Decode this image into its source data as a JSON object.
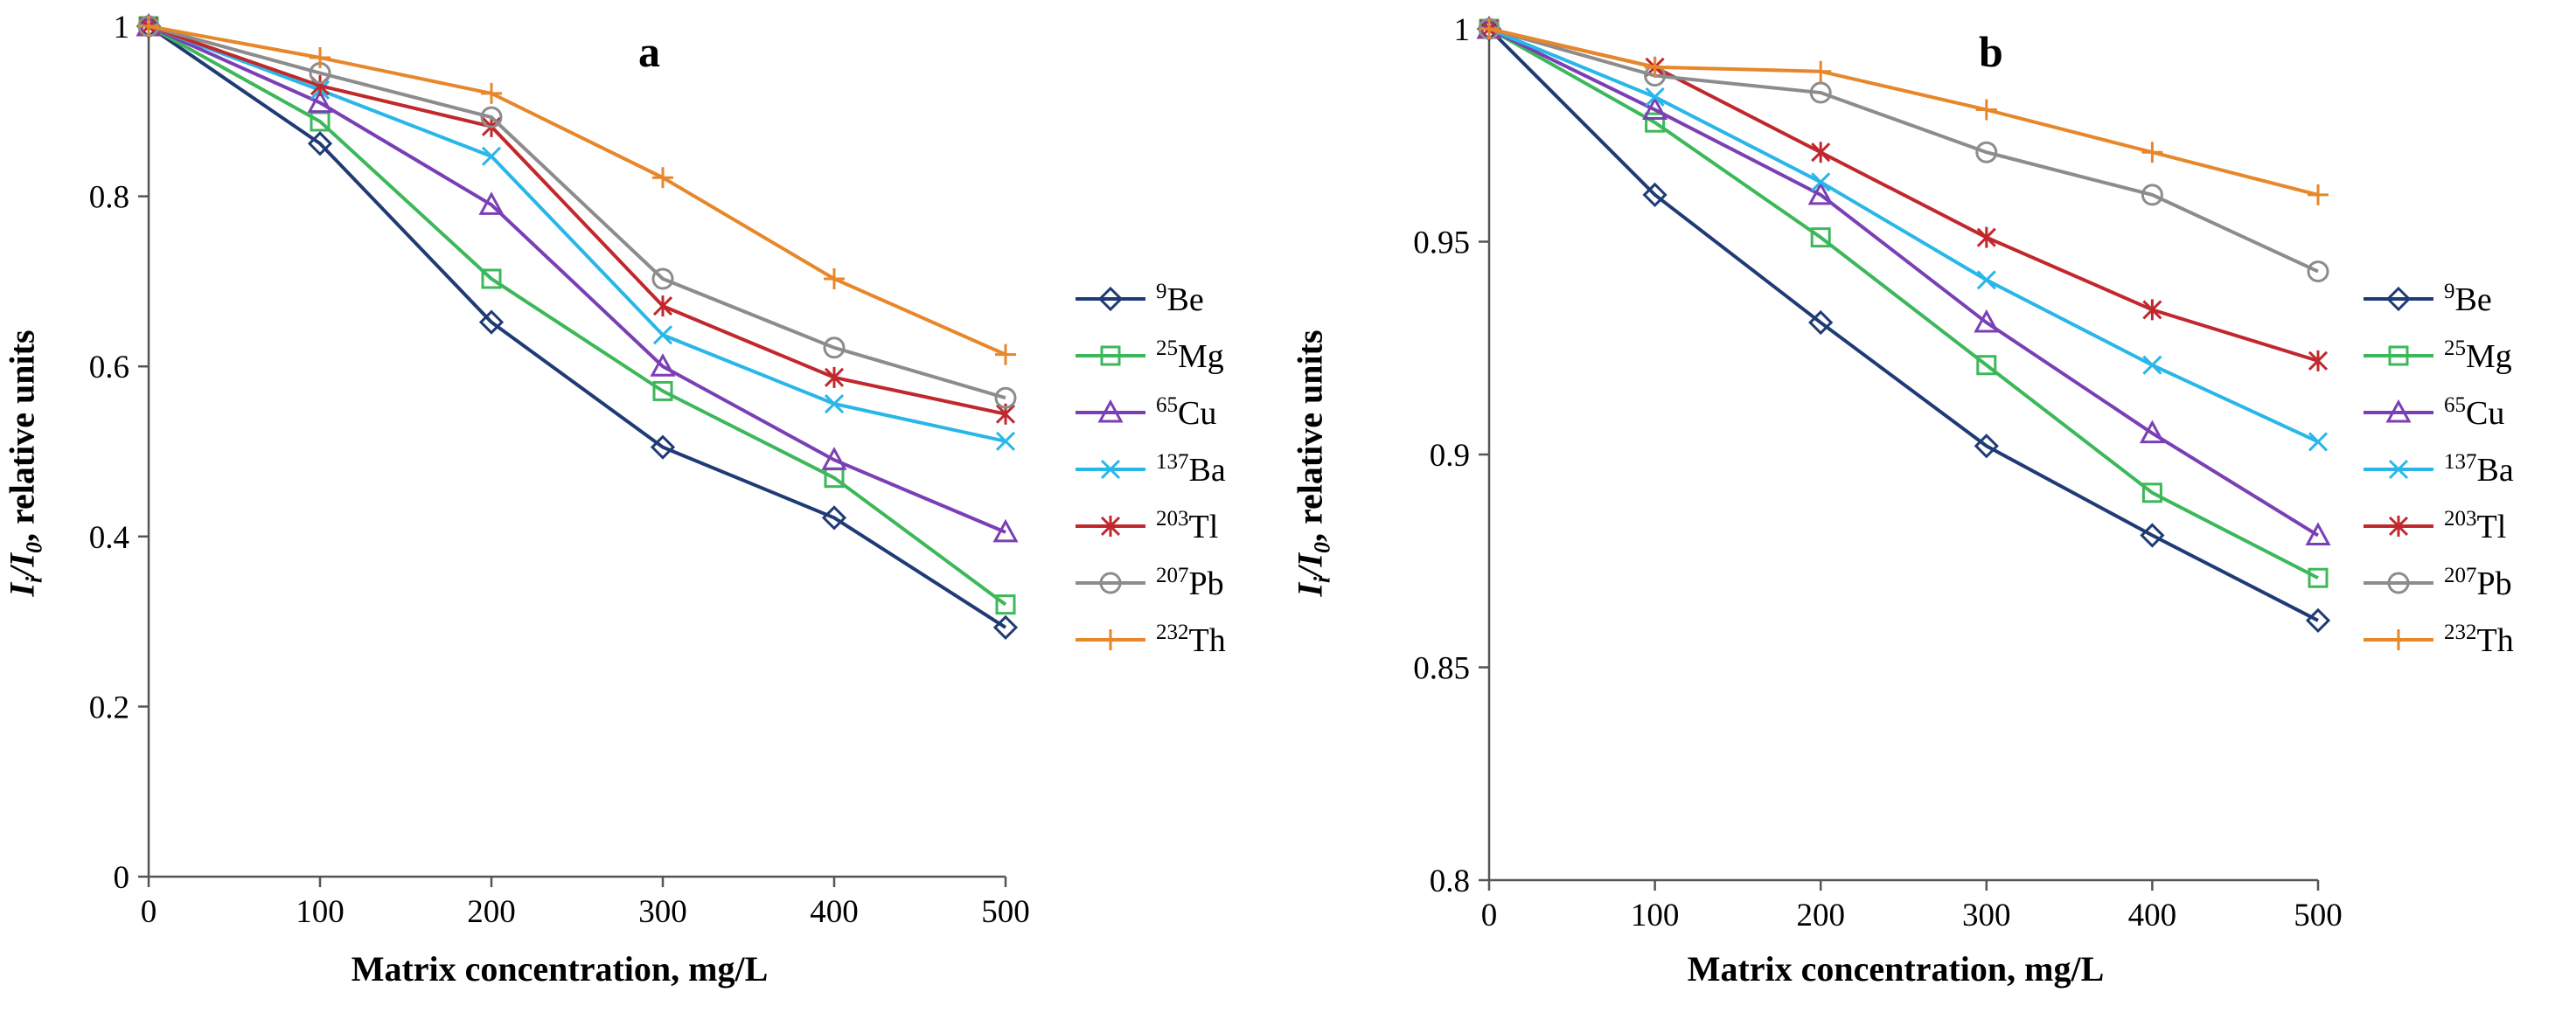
{
  "chart_data": [
    {
      "type": "line",
      "title": "a",
      "xlabel": "Matrix concentration, mg/L",
      "ylabel": "Iᵢ/I₀, relative units",
      "x": [
        0,
        100,
        200,
        300,
        400,
        500
      ],
      "xlim": [
        0,
        500
      ],
      "ylim": [
        0,
        1
      ],
      "xticks": [
        "0",
        "100",
        "200",
        "300",
        "400",
        "500"
      ],
      "yticks": [
        "0",
        "0.2",
        "0.4",
        "0.6",
        "0.8",
        "1"
      ],
      "legend_position": "right",
      "series": [
        {
          "name": "9Be",
          "mass": "9",
          "element": "Be",
          "color": "#1f3b75",
          "marker": "diamond",
          "values": [
            1,
            0.862,
            0.652,
            0.505,
            0.422,
            0.293
          ]
        },
        {
          "name": "25Mg",
          "mass": "25",
          "element": "Mg",
          "color": "#3cb85a",
          "marker": "square",
          "values": [
            1,
            0.888,
            0.703,
            0.571,
            0.469,
            0.32
          ]
        },
        {
          "name": "65Cu",
          "mass": "65",
          "element": "Cu",
          "color": "#7b3fb5",
          "marker": "triangle",
          "values": [
            1,
            0.91,
            0.79,
            0.6,
            0.49,
            0.405
          ]
        },
        {
          "name": "137Ba",
          "mass": "137",
          "element": "Ba",
          "color": "#29b6e8",
          "marker": "x",
          "values": [
            1,
            0.925,
            0.847,
            0.637,
            0.556,
            0.512
          ]
        },
        {
          "name": "203Tl",
          "mass": "203",
          "element": "Tl",
          "color": "#c1282d",
          "marker": "star",
          "values": [
            1,
            0.93,
            0.882,
            0.671,
            0.587,
            0.544
          ]
        },
        {
          "name": "207Pb",
          "mass": "207",
          "element": "Pb",
          "color": "#8c8c8c",
          "marker": "circle",
          "values": [
            1,
            0.945,
            0.893,
            0.703,
            0.622,
            0.563
          ]
        },
        {
          "name": "232Th",
          "mass": "232",
          "element": "Th",
          "color": "#e8862a",
          "marker": "plus",
          "values": [
            1,
            0.963,
            0.921,
            0.822,
            0.703,
            0.614
          ]
        }
      ]
    },
    {
      "type": "line",
      "title": "b",
      "xlabel": "Matrix concentration, mg/L",
      "ylabel": "Iᵢ/I₀, relative units",
      "x": [
        0,
        100,
        200,
        300,
        400,
        500
      ],
      "xlim": [
        0,
        500
      ],
      "ylim": [
        0.8,
        1
      ],
      "xticks": [
        "0",
        "100",
        "200",
        "300",
        "400",
        "500"
      ],
      "yticks": [
        "0.8",
        "0.85",
        "0.9",
        "0.95",
        "1"
      ],
      "legend_position": "right",
      "series": [
        {
          "name": "9Be",
          "mass": "9",
          "element": "Be",
          "color": "#1f3b75",
          "marker": "diamond",
          "values": [
            1,
            0.961,
            0.931,
            0.902,
            0.881,
            0.861
          ]
        },
        {
          "name": "25Mg",
          "mass": "25",
          "element": "Mg",
          "color": "#3cb85a",
          "marker": "square",
          "values": [
            1,
            0.978,
            0.951,
            0.921,
            0.891,
            0.871
          ]
        },
        {
          "name": "65Cu",
          "mass": "65",
          "element": "Cu",
          "color": "#7b3fb5",
          "marker": "triangle",
          "values": [
            1,
            0.981,
            0.961,
            0.931,
            0.905,
            0.881
          ]
        },
        {
          "name": "137Ba",
          "mass": "137",
          "element": "Ba",
          "color": "#29b6e8",
          "marker": "x",
          "values": [
            1,
            0.984,
            0.964,
            0.941,
            0.921,
            0.903
          ]
        },
        {
          "name": "203Tl",
          "mass": "203",
          "element": "Tl",
          "color": "#c1282d",
          "marker": "star",
          "values": [
            1,
            0.991,
            0.971,
            0.951,
            0.934,
            0.922
          ]
        },
        {
          "name": "207Pb",
          "mass": "207",
          "element": "Pb",
          "color": "#8c8c8c",
          "marker": "circle",
          "values": [
            1,
            0.989,
            0.985,
            0.971,
            0.961,
            0.943
          ]
        },
        {
          "name": "232Th",
          "mass": "232",
          "element": "Th",
          "color": "#e8862a",
          "marker": "plus",
          "values": [
            1,
            0.991,
            0.99,
            0.981,
            0.971,
            0.961
          ]
        }
      ]
    }
  ]
}
